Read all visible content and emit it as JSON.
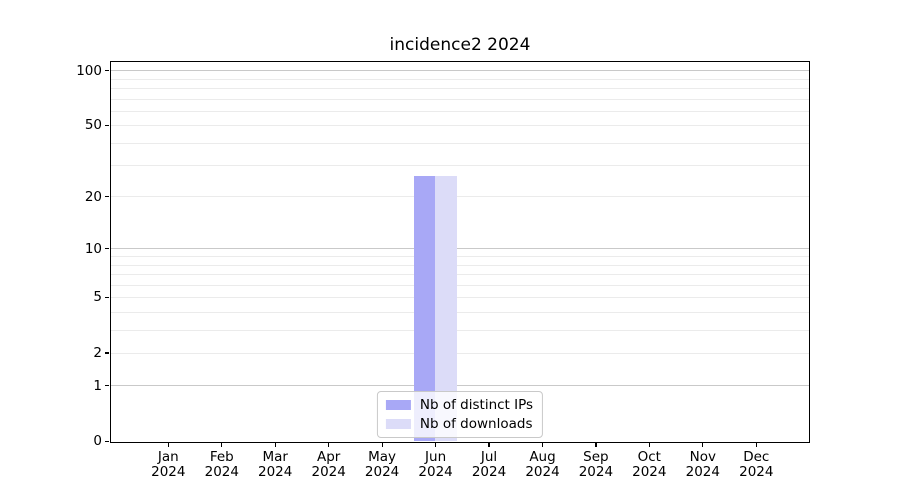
{
  "chart_data": {
    "type": "bar",
    "title": "incidence2 2024",
    "x_months": [
      "Jan",
      "Feb",
      "Mar",
      "Apr",
      "May",
      "Jun",
      "Jul",
      "Aug",
      "Sep",
      "Oct",
      "Nov",
      "Dec"
    ],
    "x_year": "2024",
    "yscale": "log1p",
    "ylim": [
      0,
      111
    ],
    "ytick_values": [
      0,
      1,
      2,
      5,
      10,
      20,
      50,
      100
    ],
    "grid_major_values": [
      1,
      10,
      100
    ],
    "grid_minor_values": [
      2,
      3,
      4,
      5,
      6,
      7,
      8,
      9,
      20,
      30,
      40,
      50,
      60,
      70,
      80,
      90
    ],
    "grid": true,
    "legend_position": "lower center",
    "series": [
      {
        "name": "Nb of distinct IPs",
        "color": "#a8a8f6",
        "values": [
          0,
          0,
          0,
          0,
          0,
          26,
          0,
          0,
          0,
          0,
          0,
          0
        ]
      },
      {
        "name": "Nb of downloads",
        "color": "#dcdcf8",
        "values": [
          0,
          0,
          0,
          0,
          0,
          26,
          0,
          0,
          0,
          0,
          0,
          0
        ]
      }
    ]
  },
  "colors": {
    "background": "#ffffff",
    "axis": "#000000",
    "grid_major": "#c9c9c9",
    "grid_minor": "#ebebeb",
    "bar_distinct_ips": "#a8a8f6",
    "bar_downloads": "#dcdcf8"
  }
}
